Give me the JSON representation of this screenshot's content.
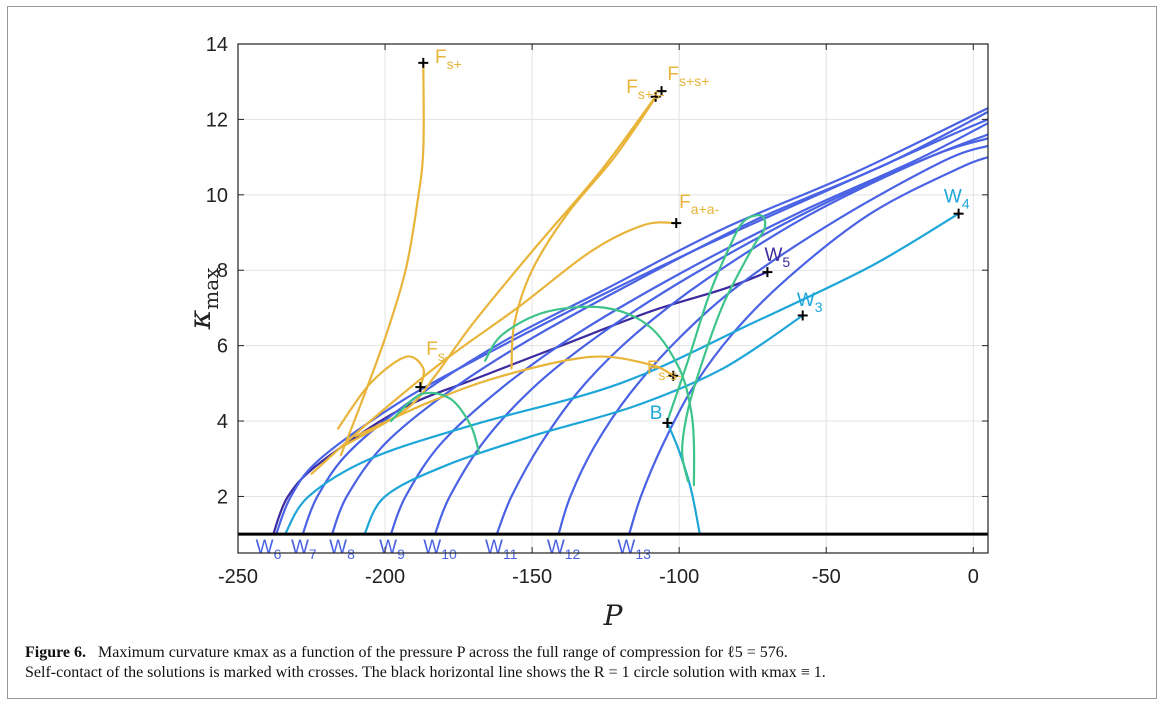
{
  "chart_data": {
    "type": "line",
    "xlabel": "P",
    "ylabel": "κ_max",
    "xlim": [
      -250,
      5
    ],
    "ylim": [
      0.5,
      14
    ],
    "xticks": [
      "-250",
      "-200",
      "-150",
      "-100",
      "-50",
      "0"
    ],
    "yticks": [
      "2",
      "4",
      "6",
      "8",
      "10",
      "12",
      "14"
    ],
    "grid": true,
    "colors": {
      "W_dark": "#3b2b9e",
      "W_blue": "#4a62e4",
      "W_cyan": "#1fa6d8",
      "F_gold": "#e8b43a",
      "green": "#3ec48a",
      "circle": "#000000",
      "crosses": "#000000"
    },
    "horizontal_line": {
      "y": 1,
      "label": "R = 1 circle solution"
    },
    "series": [
      {
        "name": "W5",
        "color_key": "W_dark",
        "points": [
          [
            -238,
            1
          ],
          [
            -233,
            2
          ],
          [
            -222,
            2.9
          ],
          [
            -195,
            4.3
          ],
          [
            -170,
            5.1
          ],
          [
            -140,
            6.0
          ],
          [
            -110,
            6.9
          ],
          [
            -85,
            7.5
          ],
          [
            -70,
            7.95
          ]
        ]
      },
      {
        "name": "W6",
        "color_key": "W_blue",
        "points": [
          [
            -237,
            1
          ],
          [
            -232,
            2
          ],
          [
            -222,
            3.0
          ],
          [
            -195,
            4.5
          ],
          [
            -165,
            5.8
          ],
          [
            -130,
            7.2
          ],
          [
            -90,
            8.7
          ],
          [
            -50,
            10.1
          ],
          [
            -10,
            11.5
          ],
          [
            5,
            12.0
          ]
        ]
      },
      {
        "name": "W7",
        "color_key": "W_blue",
        "points": [
          [
            -228,
            1
          ],
          [
            -223,
            2
          ],
          [
            -212,
            3.2
          ],
          [
            -190,
            4.6
          ],
          [
            -160,
            6.1
          ],
          [
            -125,
            7.5
          ],
          [
            -85,
            9.1
          ],
          [
            -40,
            10.6
          ],
          [
            5,
            12.3
          ]
        ]
      },
      {
        "name": "W8",
        "color_key": "W_blue",
        "points": [
          [
            -218,
            1
          ],
          [
            -213,
            2
          ],
          [
            -200,
            3.4
          ],
          [
            -178,
            4.8
          ],
          [
            -150,
            6.2
          ],
          [
            -115,
            7.7
          ],
          [
            -75,
            9.3
          ],
          [
            -30,
            10.8
          ],
          [
            5,
            12.2
          ]
        ]
      },
      {
        "name": "W9",
        "color_key": "W_blue",
        "points": [
          [
            -198,
            1
          ],
          [
            -193,
            2
          ],
          [
            -181,
            3.4
          ],
          [
            -160,
            4.9
          ],
          [
            -135,
            6.3
          ],
          [
            -100,
            7.9
          ],
          [
            -60,
            9.5
          ],
          [
            -20,
            10.9
          ],
          [
            5,
            11.9
          ]
        ]
      },
      {
        "name": "W10",
        "color_key": "W_blue",
        "points": [
          [
            -183,
            1
          ],
          [
            -178,
            2
          ],
          [
            -166,
            3.5
          ],
          [
            -148,
            5.0
          ],
          [
            -125,
            6.4
          ],
          [
            -95,
            7.9
          ],
          [
            -55,
            9.6
          ],
          [
            -15,
            11.0
          ],
          [
            5,
            11.6
          ]
        ]
      },
      {
        "name": "W11",
        "color_key": "W_blue",
        "points": [
          [
            -162,
            1
          ],
          [
            -157,
            2
          ],
          [
            -147,
            3.4
          ],
          [
            -133,
            4.9
          ],
          [
            -115,
            6.3
          ],
          [
            -90,
            7.8
          ],
          [
            -55,
            9.5
          ],
          [
            -15,
            11.0
          ],
          [
            5,
            11.5
          ]
        ]
      },
      {
        "name": "W12",
        "color_key": "W_blue",
        "points": [
          [
            -141,
            1
          ],
          [
            -137,
            2
          ],
          [
            -129,
            3.3
          ],
          [
            -117,
            4.7
          ],
          [
            -100,
            6.2
          ],
          [
            -78,
            7.7
          ],
          [
            -45,
            9.4
          ],
          [
            -10,
            10.9
          ],
          [
            5,
            11.3
          ]
        ]
      },
      {
        "name": "W13",
        "color_key": "W_blue",
        "points": [
          [
            -117,
            1
          ],
          [
            -113,
            2
          ],
          [
            -106,
            3.3
          ],
          [
            -96,
            4.8
          ],
          [
            -82,
            6.3
          ],
          [
            -63,
            7.8
          ],
          [
            -35,
            9.5
          ],
          [
            -5,
            10.7
          ],
          [
            5,
            11.0
          ]
        ]
      },
      {
        "name": "W4",
        "color_key": "W_cyan",
        "points": [
          [
            -234,
            1
          ],
          [
            -226,
            2
          ],
          [
            -205,
            3.0
          ],
          [
            -170,
            3.9
          ],
          [
            -120,
            5.0
          ],
          [
            -75,
            6.6
          ],
          [
            -35,
            8.1
          ],
          [
            -5,
            9.5
          ]
        ]
      },
      {
        "name": "W3",
        "color_key": "W_cyan",
        "points": [
          [
            -207,
            1
          ],
          [
            -200,
            2
          ],
          [
            -180,
            2.8
          ],
          [
            -150,
            3.6
          ],
          [
            -115,
            4.4
          ],
          [
            -85,
            5.4
          ],
          [
            -58,
            6.8
          ]
        ]
      },
      {
        "name": "B",
        "color_key": "W_cyan",
        "points": [
          [
            -104,
            3.95
          ],
          [
            -100,
            3.2
          ],
          [
            -96,
            2.2
          ],
          [
            -93,
            1
          ]
        ]
      },
      {
        "name": "Fs+",
        "color_key": "F_gold",
        "points": [
          [
            -215,
            3.1
          ],
          [
            -208,
            4.5
          ],
          [
            -200,
            6.2
          ],
          [
            -193,
            8.0
          ],
          [
            -189,
            9.8
          ],
          [
            -187,
            11.2
          ],
          [
            -187,
            13.5
          ]
        ]
      },
      {
        "name": "Fs+s- / Fs+s+",
        "color_key": "F_gold",
        "points": [
          [
            -157,
            5.4
          ],
          [
            -156,
            6.6
          ],
          [
            -150,
            8.0
          ],
          [
            -138,
            9.5
          ],
          [
            -122,
            11.0
          ],
          [
            -108,
            12.6
          ],
          [
            -127,
            10.6
          ],
          [
            -150,
            8.5
          ],
          [
            -170,
            6.6
          ],
          [
            -183,
            5.2
          ],
          [
            -193,
            4.3
          ],
          [
            -215,
            3.3
          ]
        ]
      },
      {
        "name": "Fa+a-",
        "color_key": "F_gold",
        "points": [
          [
            -225,
            2.6
          ],
          [
            -205,
            4.0
          ],
          [
            -180,
            5.6
          ],
          [
            -155,
            7.0
          ],
          [
            -130,
            8.5
          ],
          [
            -112,
            9.2
          ],
          [
            -101,
            9.25
          ]
        ]
      },
      {
        "name": "Fs-",
        "color_key": "F_gold",
        "points": [
          [
            -216,
            3.8
          ],
          [
            -205,
            5.0
          ],
          [
            -193,
            5.7
          ],
          [
            -187,
            5.4
          ],
          [
            -188,
            4.9
          ]
        ]
      },
      {
        "name": "Fs-s-",
        "color_key": "F_gold",
        "points": [
          [
            -210,
            3.6
          ],
          [
            -185,
            4.5
          ],
          [
            -160,
            5.2
          ],
          [
            -130,
            5.7
          ],
          [
            -110,
            5.5
          ],
          [
            -102,
            5.2
          ]
        ]
      },
      {
        "name": "green-left",
        "color_key": "green",
        "points": [
          [
            -198,
            4.0
          ],
          [
            -188,
            4.7
          ],
          [
            -178,
            4.6
          ],
          [
            -171,
            3.9
          ],
          [
            -168,
            3.15
          ]
        ]
      },
      {
        "name": "green-mid",
        "color_key": "green",
        "points": [
          [
            -166,
            5.6
          ],
          [
            -160,
            6.3
          ],
          [
            -145,
            6.9
          ],
          [
            -125,
            7.0
          ],
          [
            -110,
            6.5
          ],
          [
            -100,
            5.4
          ],
          [
            -96,
            4.3
          ],
          [
            -95,
            3.4
          ],
          [
            -95,
            2.3
          ]
        ]
      },
      {
        "name": "green-right",
        "color_key": "green",
        "points": [
          [
            -104,
            4.0
          ],
          [
            -97,
            5.6
          ],
          [
            -90,
            7.3
          ],
          [
            -83,
            8.6
          ],
          [
            -78,
            9.3
          ],
          [
            -72,
            9.45
          ],
          [
            -71,
            9.1
          ],
          [
            -75,
            8.6
          ],
          [
            -85,
            7.1
          ],
          [
            -92,
            5.6
          ],
          [
            -97,
            4.3
          ],
          [
            -99,
            3.2
          ],
          [
            -97,
            2.4
          ]
        ]
      }
    ],
    "crosses": [
      {
        "x": -187,
        "y": 13.5
      },
      {
        "x": -108,
        "y": 12.6
      },
      {
        "x": -106,
        "y": 12.75
      },
      {
        "x": -101,
        "y": 9.25
      },
      {
        "x": -70,
        "y": 7.95
      },
      {
        "x": -5,
        "y": 9.5
      },
      {
        "x": -58,
        "y": 6.8
      },
      {
        "x": -188,
        "y": 4.9
      },
      {
        "x": -102,
        "y": 5.2
      },
      {
        "x": -104,
        "y": 3.95
      }
    ],
    "annotations": [
      {
        "base": "F",
        "sub": "s+",
        "x": -183,
        "y": 13.5,
        "color_key": "F_gold"
      },
      {
        "base": "F",
        "sub": "s+s-",
        "x": -118,
        "y": 12.7,
        "color_key": "F_gold"
      },
      {
        "base": "F",
        "sub": "s+s+",
        "x": -104,
        "y": 13.05,
        "color_key": "F_gold"
      },
      {
        "base": "F",
        "sub": "a+a-",
        "x": -100,
        "y": 9.65,
        "color_key": "F_gold"
      },
      {
        "base": "F",
        "sub": "s-",
        "x": -186,
        "y": 5.75,
        "color_key": "F_gold"
      },
      {
        "base": "F",
        "sub": "s-s-",
        "x": -111,
        "y": 5.25,
        "color_key": "F_gold"
      },
      {
        "base": "W",
        "sub": "5",
        "x": -71,
        "y": 8.25,
        "color_key": "W_dark"
      },
      {
        "base": "W",
        "sub": "4",
        "x": -10,
        "y": 9.8,
        "color_key": "W_cyan"
      },
      {
        "base": "W",
        "sub": "3",
        "x": -60,
        "y": 7.05,
        "color_key": "W_cyan"
      },
      {
        "base": "B",
        "sub": "",
        "x": -110,
        "y": 4.05,
        "color_key": "W_cyan"
      },
      {
        "base": "W",
        "sub": "6",
        "x": -244,
        "y": 0.5,
        "color_key": "W_blue"
      },
      {
        "base": "W",
        "sub": "7",
        "x": -232,
        "y": 0.5,
        "color_key": "W_blue"
      },
      {
        "base": "W",
        "sub": "8",
        "x": -219,
        "y": 0.5,
        "color_key": "W_blue"
      },
      {
        "base": "W",
        "sub": "9",
        "x": -202,
        "y": 0.5,
        "color_key": "W_blue"
      },
      {
        "base": "W",
        "sub": "10",
        "x": -187,
        "y": 0.5,
        "color_key": "W_blue"
      },
      {
        "base": "W",
        "sub": "11",
        "x": -166,
        "y": 0.5,
        "color_key": "W_blue"
      },
      {
        "base": "W",
        "sub": "12",
        "x": -145,
        "y": 0.5,
        "color_key": "W_blue"
      },
      {
        "base": "W",
        "sub": "13",
        "x": -121,
        "y": 0.5,
        "color_key": "W_blue"
      }
    ]
  },
  "caption": {
    "label": "Figure 6.",
    "line1": "Maximum curvature κmax as a function of the pressure P across the full range of compression for ℓ5 = 576.",
    "line2": "Self-contact of the solutions is marked with crosses. The black horizontal line shows the R = 1 circle solution with κmax ≡ 1."
  }
}
